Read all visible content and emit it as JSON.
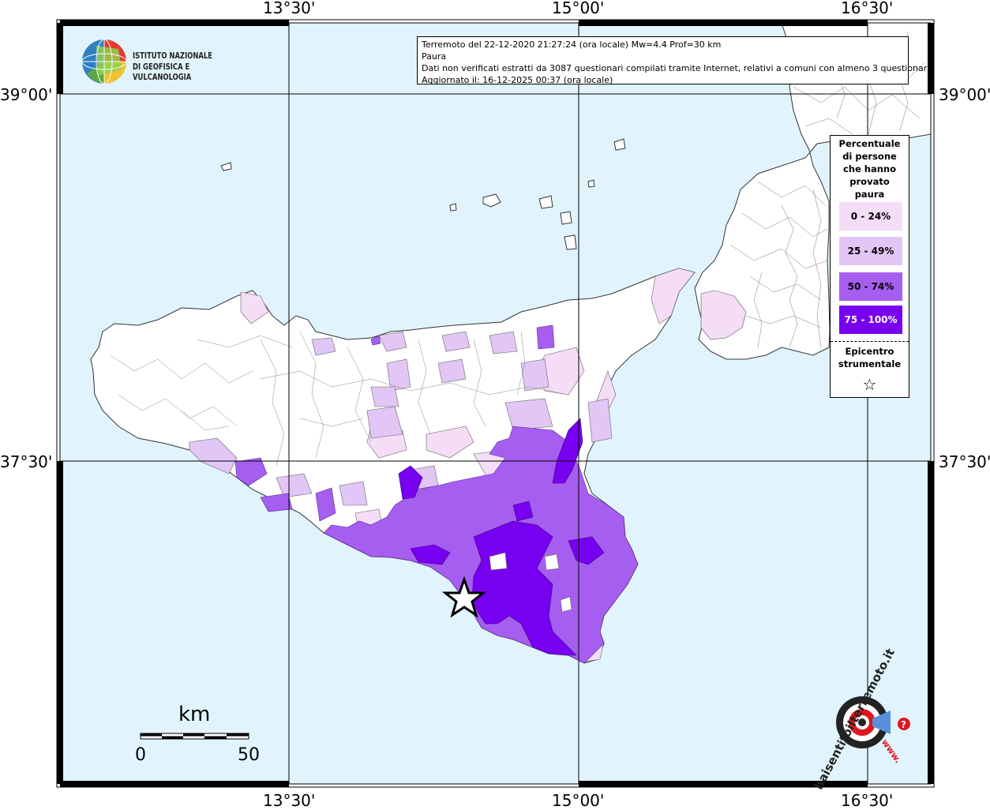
{
  "header": {
    "lines": [
      "Terremoto del 22-12-2020 21:27:24 (ora locale) Mw=4.4 Prof=30 km",
      "Paura",
      "Dati non verificati estratti da 3087 questionari compilati tramite Internet, relativi a comuni con almeno 3 questionari.",
      "Aggiornato il: 16-12-2025 00:37 (ora locale)"
    ]
  },
  "institute": {
    "line1": "ISTITUTO NAZIONALE",
    "line2": "DI GEOFISICA E VULCANOLOGIA"
  },
  "axes": {
    "lon_labels": [
      "13°30'",
      "15°00'",
      "16°30'"
    ],
    "lat_labels": [
      "39°00'",
      "37°30'"
    ]
  },
  "legend": {
    "title": "Percentuale di persone che hanno provato paura",
    "title_lines": [
      "Percentuale",
      "di persone",
      "che hanno",
      "provato",
      "paura"
    ],
    "classes": [
      {
        "label": "0 - 24%",
        "color": "#f5dcf7"
      },
      {
        "label": "25 - 49%",
        "color": "#e1c6f6"
      },
      {
        "label": "50 - 74%",
        "color": "#a65ef0"
      },
      {
        "label": "75 - 100%",
        "color": "#7800f0"
      }
    ],
    "epicenter_lines": [
      "Epicentro",
      "strumentale"
    ],
    "epicenter_symbol": "☆"
  },
  "scale_bar": {
    "unit": "km",
    "min": "0",
    "max": "50"
  },
  "watermark": {
    "text": "haisentitoilterremoto.it",
    "url_text": "www."
  },
  "colors": {
    "sea": "#e1f4fd",
    "land": "#ffffff",
    "border": "#333333"
  }
}
